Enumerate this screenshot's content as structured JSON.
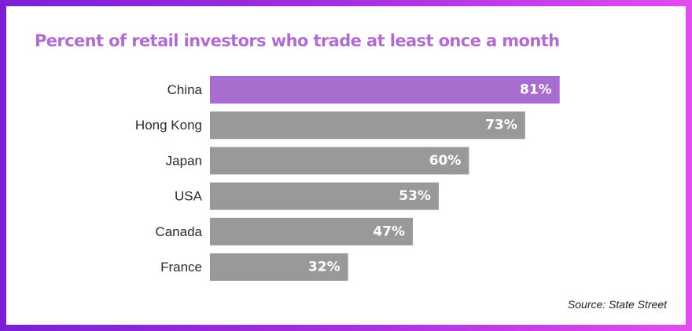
{
  "chart_data": {
    "type": "bar",
    "orientation": "horizontal",
    "title": "Percent of retail investors who trade at least once a month",
    "categories": [
      "China",
      "Hong Kong",
      "Japan",
      "USA",
      "Canada",
      "France"
    ],
    "values": [
      81,
      73,
      60,
      53,
      47,
      32
    ],
    "value_labels": [
      "81%",
      "73%",
      "60%",
      "53%",
      "47%",
      "32%"
    ],
    "unit": "%",
    "xlim": [
      0,
      100
    ],
    "highlight_category": "China",
    "grid": false,
    "legend": "none"
  },
  "source": "Source: State Street",
  "colors": {
    "highlight": "#a96ccf",
    "bar": "#999999",
    "title": "#b06ccf",
    "frame_gradient": [
      "#7b1fd6",
      "#e24cf2"
    ]
  }
}
